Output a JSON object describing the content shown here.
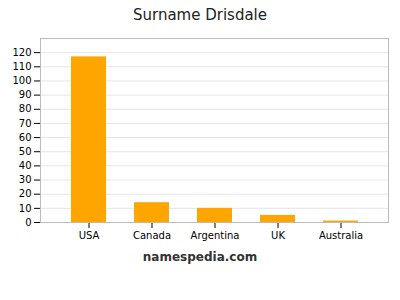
{
  "chart_data": {
    "type": "bar",
    "title": "Surname Drisdale",
    "caption": "namespedia.com",
    "categories": [
      "USA",
      "Canada",
      "Argentina",
      "UK",
      "Australia"
    ],
    "values": [
      117,
      14,
      10,
      5,
      1
    ],
    "color": "#FFA500",
    "ylim": [
      0,
      130
    ],
    "yticks": [
      0,
      10,
      20,
      30,
      40,
      50,
      60,
      70,
      80,
      90,
      100,
      110,
      120
    ],
    "grid": true
  }
}
